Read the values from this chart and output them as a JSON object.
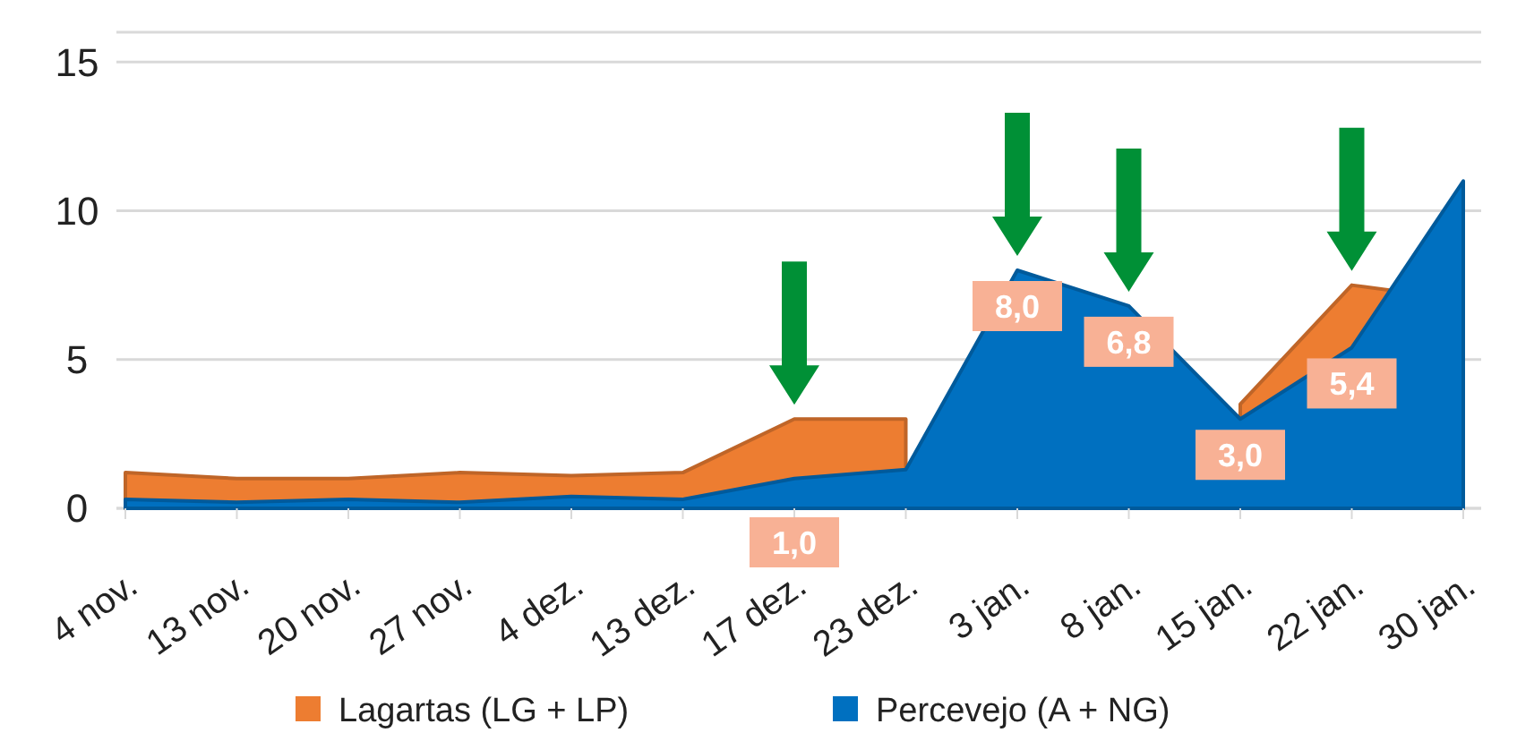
{
  "chart_data": {
    "type": "area",
    "categories": [
      "4 nov.",
      "13 nov.",
      "20 nov.",
      "27 nov.",
      "4 dez.",
      "13 dez.",
      "17 dez.",
      "23 dez.",
      "3 jan.",
      "8 jan.",
      "15 jan.",
      "22 jan.",
      "30 jan."
    ],
    "series": [
      {
        "name": "Lagartas (LG + LP)",
        "color": "#ed7d31",
        "values": [
          1.2,
          1.0,
          1.0,
          1.2,
          1.1,
          1.2,
          3.0,
          3.0,
          null,
          null,
          3.5,
          7.5,
          7.0
        ]
      },
      {
        "name": "Percevejo (A + NG)",
        "color": "#0070c0",
        "values": [
          0.3,
          0.2,
          0.3,
          0.2,
          0.4,
          0.3,
          1.0,
          1.3,
          8.0,
          6.8,
          3.0,
          5.4,
          11.0
        ],
        "value_labels": [
          null,
          null,
          null,
          null,
          null,
          null,
          "1,0",
          null,
          "8,0",
          "6,8",
          "3,0",
          "5,4",
          null
        ]
      }
    ],
    "ylim": [
      0,
      16
    ],
    "yticks": [
      0,
      5,
      10,
      15
    ],
    "grid": "y",
    "legend": "bottom"
  }
}
